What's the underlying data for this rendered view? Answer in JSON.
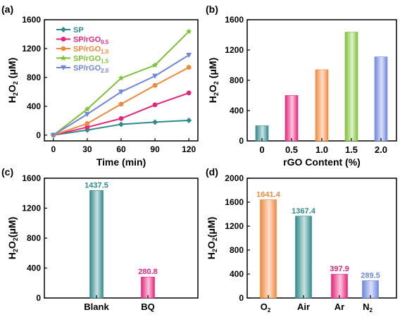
{
  "chart_data": [
    {
      "panel": "(a)",
      "type": "line",
      "xlabel": "Time (min)",
      "ylabel": "H2O2 (μM)",
      "x": [
        0,
        30,
        60,
        90,
        120
      ],
      "xlim": [
        -8,
        128
      ],
      "ylim": [
        -80,
        1600
      ],
      "yticks": [
        0,
        400,
        800,
        1200,
        1600
      ],
      "legend_position": "top-left",
      "series": [
        {
          "name": "SP",
          "sub": "",
          "color": "#2E8B8B",
          "marker": "diamond",
          "values": [
            0,
            70,
            150,
            180,
            205
          ]
        },
        {
          "name": "SP/rGO",
          "sub": "0.5",
          "color": "#E8237B",
          "marker": "circle",
          "values": [
            0,
            110,
            230,
            420,
            585
          ]
        },
        {
          "name": "SP/rGO",
          "sub": "1.0",
          "color": "#F4873A",
          "marker": "circle",
          "values": [
            0,
            160,
            430,
            690,
            940
          ]
        },
        {
          "name": "SP/rGO",
          "sub": "1.5",
          "color": "#7DC234",
          "marker": "star",
          "values": [
            0,
            360,
            790,
            970,
            1437
          ]
        },
        {
          "name": "SP/rGO",
          "sub": "2.0",
          "color": "#6E86E0",
          "marker": "triangle-down",
          "values": [
            0,
            290,
            600,
            820,
            1110
          ]
        }
      ]
    },
    {
      "panel": "(b)",
      "type": "bar",
      "xlabel": "rGO Content (%)",
      "ylabel": "H2O2 (μM)",
      "categories": [
        "0",
        "0.5",
        "1.0",
        "1.5",
        "2.0"
      ],
      "values": [
        200,
        600,
        940,
        1437,
        1110
      ],
      "colors": [
        "#2E8B8B",
        "#E8237B",
        "#F4873A",
        "#7DC234",
        "#6E86E0"
      ],
      "ylim": [
        0,
        1600
      ],
      "yticks": [
        0,
        400,
        800,
        1200,
        1600
      ]
    },
    {
      "panel": "(c)",
      "type": "bar",
      "xlabel": "",
      "ylabel": "H2O2 (μM)",
      "categories": [
        "Blank",
        "BQ"
      ],
      "values": [
        1437.5,
        280.8
      ],
      "labels": [
        "1437.5",
        "280.8"
      ],
      "colors": [
        "#2E8B8B",
        "#E8237B"
      ],
      "ylim": [
        0,
        1600
      ],
      "yticks": [
        0,
        400,
        800,
        1200,
        1600
      ]
    },
    {
      "panel": "(d)",
      "type": "bar",
      "xlabel": "",
      "ylabel": "H2O2 (μM)",
      "categories": [
        "O2",
        "Air",
        "Ar",
        "N2"
      ],
      "values": [
        1641.4,
        1367.4,
        397.9,
        289.5
      ],
      "labels": [
        "1641.4",
        "1367.4",
        "397.9",
        "289.5"
      ],
      "colors": [
        "#F4873A",
        "#2E8B8B",
        "#E8237B",
        "#6E86E0"
      ],
      "ylim": [
        0,
        2000
      ],
      "yticks": [
        0,
        400,
        800,
        1200,
        1600,
        2000
      ]
    }
  ]
}
